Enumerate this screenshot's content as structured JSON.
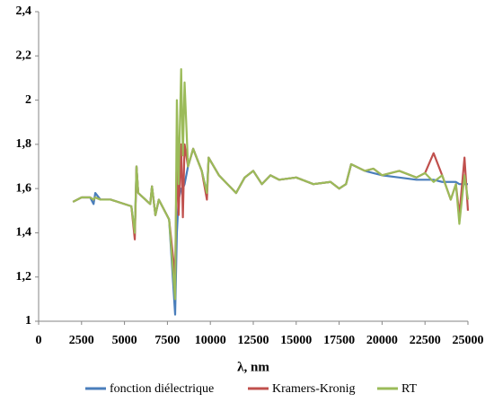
{
  "chart_data": {
    "type": "line",
    "x_label": "λ, nm",
    "x": [
      2000,
      2500,
      3000,
      3200,
      3300,
      3600,
      4200,
      5000,
      5400,
      5600,
      5700,
      5800,
      6500,
      6600,
      6800,
      7000,
      7600,
      7950,
      8050,
      8150,
      8300,
      8400,
      8500,
      8700,
      9000,
      9500,
      9800,
      9900,
      10500,
      11000,
      11500,
      12000,
      12500,
      13000,
      13500,
      14000,
      15000,
      16000,
      17000,
      17500,
      17900,
      18200,
      19000,
      19500,
      20000,
      21000,
      22000,
      22500,
      23000,
      23500,
      24000,
      24300,
      24500,
      24800,
      25000
    ],
    "series": [
      {
        "name": "fonction diélectrique",
        "color": "#4a7ebb",
        "values": [
          1.54,
          1.56,
          1.56,
          1.53,
          1.58,
          1.55,
          1.55,
          1.53,
          1.52,
          1.4,
          1.7,
          1.58,
          1.53,
          1.61,
          1.48,
          1.55,
          1.46,
          1.03,
          1.4,
          1.55,
          1.6,
          1.6,
          1.62,
          1.7,
          1.78,
          1.68,
          1.58,
          1.74,
          1.66,
          1.62,
          1.58,
          1.65,
          1.68,
          1.62,
          1.66,
          1.64,
          1.65,
          1.62,
          1.63,
          1.6,
          1.62,
          1.71,
          1.68,
          1.67,
          1.66,
          1.65,
          1.64,
          1.64,
          1.64,
          1.63,
          1.63,
          1.63,
          1.62,
          1.62,
          1.62
        ]
      },
      {
        "name": "Kramers-Kronig",
        "color": "#c0504d",
        "values": [
          1.54,
          1.56,
          1.56,
          1.55,
          1.56,
          1.55,
          1.55,
          1.53,
          1.52,
          1.37,
          1.7,
          1.58,
          1.53,
          1.61,
          1.48,
          1.55,
          1.46,
          1.2,
          1.78,
          1.48,
          1.8,
          1.47,
          1.8,
          1.7,
          1.78,
          1.68,
          1.55,
          1.74,
          1.66,
          1.62,
          1.58,
          1.65,
          1.68,
          1.62,
          1.66,
          1.64,
          1.65,
          1.62,
          1.63,
          1.6,
          1.62,
          1.71,
          1.68,
          1.69,
          1.66,
          1.68,
          1.65,
          1.67,
          1.76,
          1.66,
          1.55,
          1.62,
          1.48,
          1.74,
          1.5
        ]
      },
      {
        "name": "RT",
        "color": "#9bbb59",
        "values": [
          1.54,
          1.56,
          1.56,
          1.55,
          1.56,
          1.55,
          1.55,
          1.53,
          1.52,
          1.4,
          1.7,
          1.58,
          1.53,
          1.61,
          1.48,
          1.55,
          1.46,
          1.1,
          2.0,
          1.62,
          2.14,
          1.75,
          2.08,
          1.7,
          1.78,
          1.68,
          1.58,
          1.74,
          1.66,
          1.62,
          1.58,
          1.65,
          1.68,
          1.62,
          1.66,
          1.64,
          1.65,
          1.62,
          1.63,
          1.6,
          1.62,
          1.71,
          1.68,
          1.69,
          1.66,
          1.68,
          1.65,
          1.67,
          1.63,
          1.66,
          1.55,
          1.62,
          1.44,
          1.66,
          1.55
        ]
      }
    ],
    "xlim": [
      0,
      25000
    ],
    "xticks": [
      0,
      2500,
      5000,
      7500,
      10000,
      12500,
      15000,
      17500,
      20000,
      22500,
      25000
    ],
    "ylim": [
      1,
      2.4
    ],
    "yticks": [
      1,
      {
        "value": 1.2,
        "label": "1,2"
      },
      {
        "value": 1.4,
        "label": "1,4"
      },
      {
        "value": 1.6,
        "label": "1,6"
      },
      {
        "value": 1.8,
        "label": "1,8"
      },
      {
        "value": 2,
        "label": "2"
      },
      {
        "value": 2.2,
        "label": "2,2"
      },
      {
        "value": 2.4,
        "label": "2,4"
      }
    ],
    "grid": false,
    "legend": "bottom"
  }
}
